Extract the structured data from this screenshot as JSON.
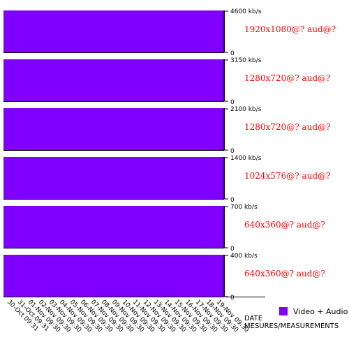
{
  "chart_data": {
    "type": "bar",
    "stacked_panels": true,
    "unit": "kb/s",
    "xlabel_line1": "DATE",
    "xlabel_line2": "MESURES/MEASUREMENTS",
    "categories": [
      "30-Oct 09:31",
      "31-Oct 09:31",
      "01-Nov 09:30",
      "02-Nov 09:30",
      "03-Nov 09:30",
      "04-Nov 09:30",
      "05-Nov 09:30",
      "06-Nov 09:30",
      "07-Nov 09:30",
      "08-Nov 09:30",
      "09-Nov 09:30",
      "10-Nov 09:30",
      "11-Nov 09:30",
      "12-Nov 09:30",
      "13-Nov 09:30",
      "14-Nov 09:30",
      "15-Nov 09:30",
      "16-Nov 09:30",
      "17-Nov 09:30",
      "18-Nov 09:30",
      "19-Nov 09:30"
    ],
    "legend": {
      "position": "bottom-right",
      "label": "Video + Audio",
      "color": "#7f00ff"
    },
    "series_color": "#7f00ff",
    "panels": [
      {
        "rendition": "1920x1080@? aud@?",
        "ymax": 4600,
        "ymax_label": "4600 kb/s",
        "ymin_label": "0",
        "values": [
          4600,
          4600,
          4600,
          4600,
          4600,
          4600,
          4600,
          4600,
          4600,
          4600,
          4600,
          4600,
          4600,
          4600,
          4600,
          4600,
          4600,
          4600,
          4600,
          4600,
          4600
        ]
      },
      {
        "rendition": "1280x720@? aud@?",
        "ymax": 3150,
        "ymax_label": "3150 kb/s",
        "ymin_label": "0",
        "values": [
          3150,
          3150,
          3150,
          3150,
          3150,
          3150,
          3150,
          3150,
          3150,
          3150,
          3150,
          3150,
          3150,
          3150,
          3150,
          3150,
          3150,
          3150,
          3150,
          3150,
          3150
        ]
      },
      {
        "rendition": "1280x720@? aud@?",
        "ymax": 2100,
        "ymax_label": "2100 kb/s",
        "ymin_label": "0",
        "values": [
          2100,
          2100,
          2100,
          2100,
          2100,
          2100,
          2100,
          2100,
          2100,
          2100,
          2100,
          2100,
          2100,
          2100,
          2100,
          2100,
          2100,
          2100,
          2100,
          2100,
          2100
        ]
      },
      {
        "rendition": "1024x576@? aud@?",
        "ymax": 1400,
        "ymax_label": "1400 kb/s",
        "ymin_label": "0",
        "values": [
          1400,
          1400,
          1400,
          1400,
          1400,
          1400,
          1400,
          1400,
          1400,
          1400,
          1400,
          1400,
          1400,
          1400,
          1400,
          1400,
          1400,
          1400,
          1400,
          1400,
          1400
        ]
      },
      {
        "rendition": "640x360@? aud@?",
        "ymax": 700,
        "ymax_label": "700 kb/s",
        "ymin_label": "0",
        "values": [
          700,
          700,
          700,
          700,
          700,
          700,
          700,
          700,
          700,
          700,
          700,
          700,
          700,
          700,
          700,
          700,
          700,
          700,
          700,
          700,
          700
        ]
      },
      {
        "rendition": "640x360@? aud@?",
        "ymax": 400,
        "ymax_label": "400 kb/s",
        "ymin_label": "0",
        "values": [
          400,
          400,
          400,
          400,
          400,
          400,
          400,
          400,
          400,
          400,
          400,
          400,
          400,
          400,
          400,
          400,
          400,
          400,
          400,
          400,
          400
        ]
      }
    ],
    "rendition_text_color": "#ff0000"
  }
}
